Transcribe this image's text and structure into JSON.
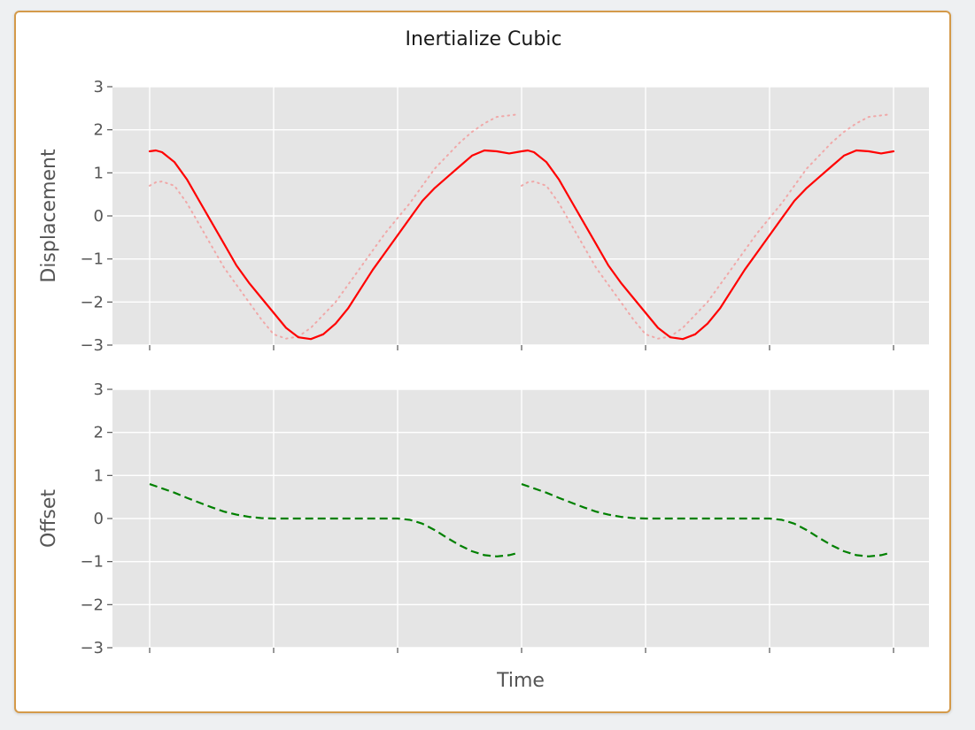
{
  "chart_data": {
    "type": "line",
    "title": "Inertialize Cubic",
    "xlabel": "Time",
    "colors": {
      "panel_background": "#e5e5e5",
      "grid": "#ffffff",
      "displacement": "#ff0000",
      "source": "#f0a8a8",
      "offset": "#008000"
    },
    "x_ticks": [
      0,
      1,
      2,
      3,
      4,
      5,
      6
    ],
    "panels": [
      {
        "name": "displacement",
        "ylabel": "Displacement",
        "ylim": [
          -3,
          3
        ],
        "yticks": [
          3,
          2,
          1,
          0,
          -1,
          -2,
          -3
        ],
        "ytick_labels": [
          "3",
          "2",
          "1",
          "0",
          "−1",
          "−2",
          "−3"
        ],
        "series": [
          {
            "style": "dotted",
            "color": "#f0a8a8",
            "segments": [
              {
                "x": [
                  0,
                  0.05,
                  0.1,
                  0.2,
                  0.3,
                  0.4,
                  0.5,
                  0.6,
                  0.7,
                  0.8,
                  0.9,
                  1.0,
                  1.1,
                  1.2,
                  1.3,
                  1.4,
                  1.5,
                  1.6,
                  1.7,
                  1.8,
                  1.9,
                  2.0,
                  2.1,
                  2.2,
                  2.3,
                  2.4,
                  2.5,
                  2.6,
                  2.7,
                  2.8,
                  2.95
                ],
                "y": [
                  0.7,
                  0.78,
                  0.8,
                  0.7,
                  0.3,
                  -0.2,
                  -0.7,
                  -1.2,
                  -1.6,
                  -2.0,
                  -2.4,
                  -2.75,
                  -2.85,
                  -2.8,
                  -2.6,
                  -2.3,
                  -2.0,
                  -1.6,
                  -1.2,
                  -0.8,
                  -0.4,
                  -0.05,
                  0.3,
                  0.7,
                  1.1,
                  1.4,
                  1.7,
                  1.95,
                  2.15,
                  2.3,
                  2.35
                ]
              },
              {
                "x": [
                  3,
                  3.05,
                  3.1,
                  3.2,
                  3.3,
                  3.4,
                  3.5,
                  3.6,
                  3.7,
                  3.8,
                  3.9,
                  4.0,
                  4.1,
                  4.2,
                  4.3,
                  4.4,
                  4.5,
                  4.6,
                  4.7,
                  4.8,
                  4.9,
                  5.0,
                  5.1,
                  5.2,
                  5.3,
                  5.4,
                  5.5,
                  5.6,
                  5.7,
                  5.8,
                  5.95
                ],
                "y": [
                  0.7,
                  0.78,
                  0.8,
                  0.7,
                  0.3,
                  -0.2,
                  -0.7,
                  -1.2,
                  -1.6,
                  -2.0,
                  -2.4,
                  -2.75,
                  -2.85,
                  -2.8,
                  -2.6,
                  -2.3,
                  -2.0,
                  -1.6,
                  -1.2,
                  -0.8,
                  -0.4,
                  -0.05,
                  0.3,
                  0.7,
                  1.1,
                  1.4,
                  1.7,
                  1.95,
                  2.15,
                  2.3,
                  2.35
                ]
              }
            ]
          },
          {
            "style": "solid",
            "color": "#ff0000",
            "segments": [
              {
                "x": [
                  0,
                  0.05,
                  0.1,
                  0.2,
                  0.3,
                  0.4,
                  0.5,
                  0.6,
                  0.7,
                  0.8,
                  0.9,
                  1.0,
                  1.1,
                  1.2,
                  1.3,
                  1.4,
                  1.5,
                  1.6,
                  1.7,
                  1.8,
                  1.9,
                  2.0,
                  2.1,
                  2.2,
                  2.3,
                  2.4,
                  2.5,
                  2.6,
                  2.7,
                  2.8,
                  2.9,
                  3.0,
                  3.05,
                  3.1,
                  3.2,
                  3.3,
                  3.4,
                  3.5,
                  3.6,
                  3.7,
                  3.8,
                  3.9,
                  4.0,
                  4.1,
                  4.2,
                  4.3,
                  4.4,
                  4.5,
                  4.6,
                  4.7,
                  4.8,
                  4.9,
                  5.0,
                  5.1,
                  5.2,
                  5.3,
                  5.4,
                  5.5,
                  5.6,
                  5.7,
                  5.8,
                  5.9,
                  6.0
                ],
                "y": [
                  1.5,
                  1.52,
                  1.48,
                  1.25,
                  0.85,
                  0.35,
                  -0.15,
                  -0.65,
                  -1.15,
                  -1.55,
                  -1.9,
                  -2.25,
                  -2.6,
                  -2.82,
                  -2.86,
                  -2.75,
                  -2.5,
                  -2.15,
                  -1.7,
                  -1.25,
                  -0.85,
                  -0.45,
                  -0.05,
                  0.35,
                  0.65,
                  0.9,
                  1.15,
                  1.4,
                  1.52,
                  1.5,
                  1.45,
                  1.5,
                  1.52,
                  1.48,
                  1.25,
                  0.85,
                  0.35,
                  -0.15,
                  -0.65,
                  -1.15,
                  -1.55,
                  -1.9,
                  -2.25,
                  -2.6,
                  -2.82,
                  -2.86,
                  -2.75,
                  -2.5,
                  -2.15,
                  -1.7,
                  -1.25,
                  -0.85,
                  -0.45,
                  -0.05,
                  0.35,
                  0.65,
                  0.9,
                  1.15,
                  1.4,
                  1.52,
                  1.5,
                  1.45,
                  1.5
                ]
              }
            ]
          }
        ]
      },
      {
        "name": "offset",
        "ylabel": "Offset",
        "ylim": [
          -3,
          3
        ],
        "yticks": [
          3,
          2,
          1,
          0,
          -1,
          -2,
          -3
        ],
        "ytick_labels": [
          "3",
          "2",
          "1",
          "0",
          "−1",
          "−2",
          "−3"
        ],
        "series": [
          {
            "style": "dashed",
            "color": "#008000",
            "segments": [
              {
                "x": [
                  0,
                  0.1,
                  0.2,
                  0.3,
                  0.4,
                  0.5,
                  0.6,
                  0.7,
                  0.8,
                  0.9,
                  1.0,
                  1.2,
                  1.4,
                  1.6,
                  1.8,
                  2.0,
                  2.1,
                  2.2,
                  2.3,
                  2.4,
                  2.5,
                  2.6,
                  2.7,
                  2.8,
                  2.9,
                  2.97
                ],
                "y": [
                  0.8,
                  0.7,
                  0.6,
                  0.48,
                  0.37,
                  0.26,
                  0.16,
                  0.09,
                  0.04,
                  0.01,
                  0.0,
                  0.0,
                  0.0,
                  0.0,
                  0.0,
                  0.0,
                  -0.03,
                  -0.12,
                  -0.27,
                  -0.45,
                  -0.62,
                  -0.76,
                  -0.85,
                  -0.88,
                  -0.85,
                  -0.8
                ]
              },
              {
                "x": [
                  3,
                  3.1,
                  3.2,
                  3.3,
                  3.4,
                  3.5,
                  3.6,
                  3.7,
                  3.8,
                  3.9,
                  4.0,
                  4.2,
                  4.4,
                  4.6,
                  4.8,
                  5.0,
                  5.1,
                  5.2,
                  5.3,
                  5.4,
                  5.5,
                  5.6,
                  5.7,
                  5.8,
                  5.9,
                  5.97
                ],
                "y": [
                  0.8,
                  0.7,
                  0.6,
                  0.48,
                  0.37,
                  0.26,
                  0.16,
                  0.09,
                  0.04,
                  0.01,
                  0.0,
                  0.0,
                  0.0,
                  0.0,
                  0.0,
                  0.0,
                  -0.03,
                  -0.12,
                  -0.27,
                  -0.45,
                  -0.62,
                  -0.76,
                  -0.85,
                  -0.88,
                  -0.85,
                  -0.8
                ]
              }
            ]
          }
        ]
      }
    ]
  }
}
